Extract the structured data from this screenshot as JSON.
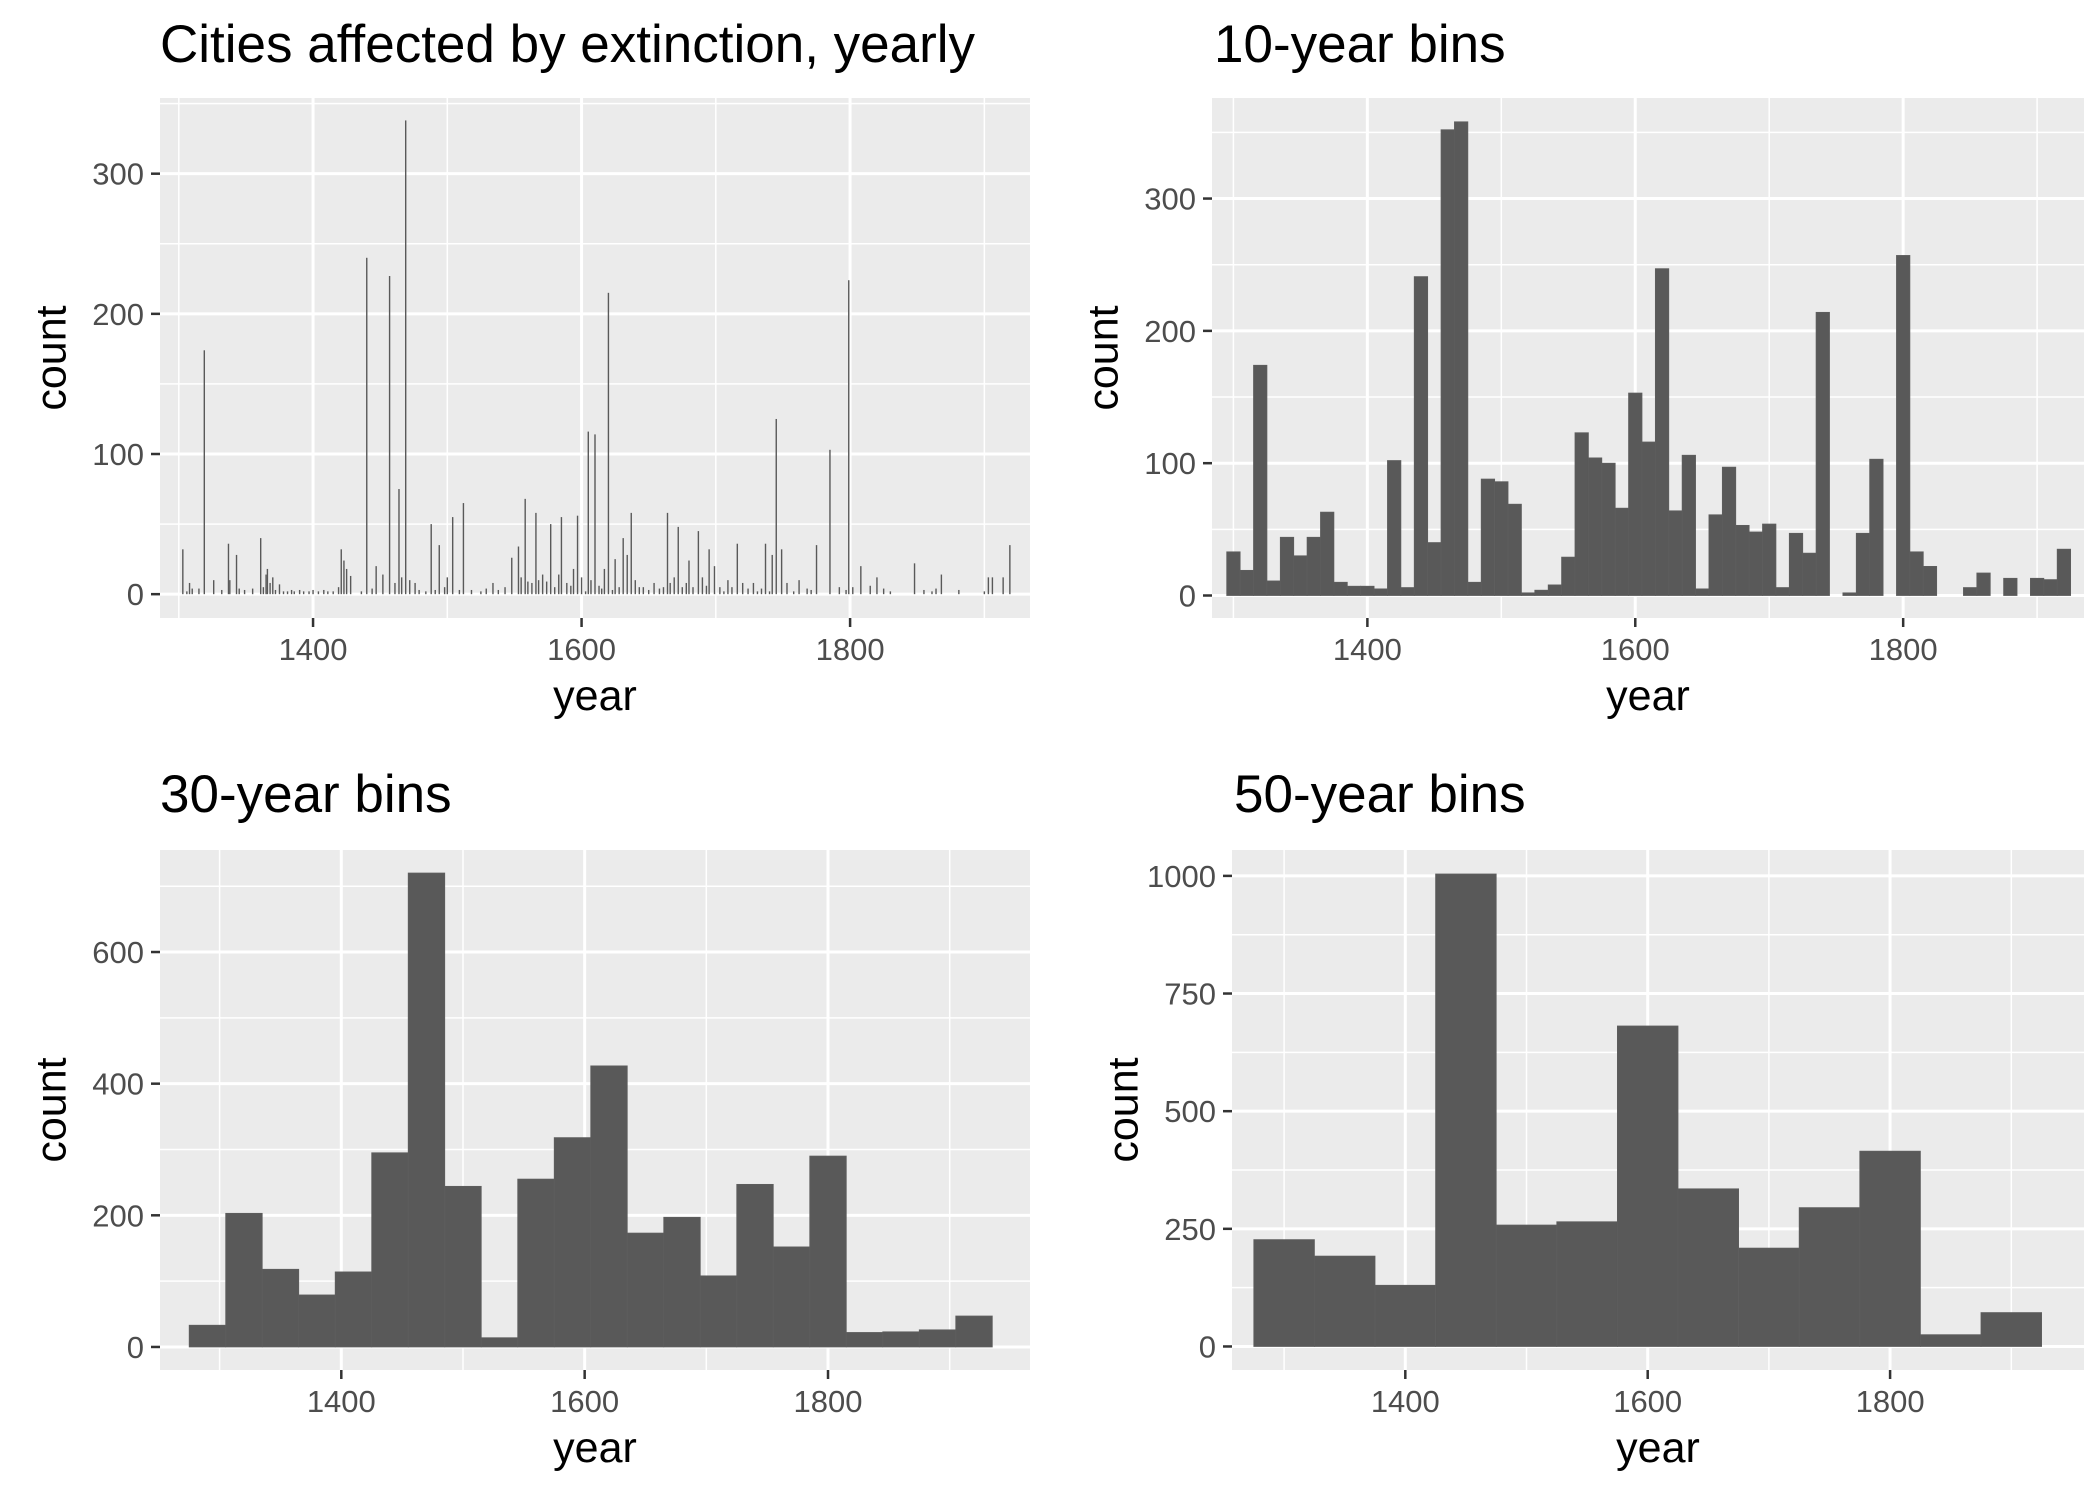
{
  "figure": {
    "background": "#ffffff",
    "panel_bg": "#ebebeb",
    "grid_color": "#ffffff",
    "bar_color": "#595959",
    "tick_text_color": "#4d4d4d"
  },
  "chart_data": [
    {
      "type": "bar",
      "title": "Cities affected by extinction, yearly",
      "xlabel": "year",
      "ylabel": "count",
      "xlim": [
        1286,
        1934
      ],
      "ylim": [
        -17,
        354
      ],
      "x_ticks": [
        "1400",
        "1600",
        "1800"
      ],
      "x_tick_values": [
        1400,
        1600,
        1800
      ],
      "y_ticks": [
        "0",
        "100",
        "200",
        "300"
      ],
      "y_tick_values": [
        0,
        100,
        200,
        300
      ],
      "grid": true,
      "bin_width": 1,
      "x": [
        1303,
        1306,
        1308,
        1310,
        1315,
        1319,
        1326,
        1332,
        1337,
        1338,
        1343,
        1345,
        1349,
        1355,
        1361,
        1363,
        1365,
        1366,
        1368,
        1370,
        1372,
        1375,
        1378,
        1381,
        1384,
        1386,
        1390,
        1393,
        1397,
        1400,
        1404,
        1408,
        1411,
        1415,
        1419,
        1421,
        1423,
        1425,
        1428,
        1436,
        1440,
        1444,
        1447,
        1452,
        1457,
        1461,
        1464,
        1466,
        1469,
        1472,
        1476,
        1479,
        1484,
        1488,
        1491,
        1494,
        1498,
        1500,
        1504,
        1509,
        1512,
        1518,
        1525,
        1529,
        1534,
        1538,
        1543,
        1548,
        1553,
        1555,
        1558,
        1560,
        1563,
        1566,
        1568,
        1571,
        1574,
        1577,
        1580,
        1583,
        1585,
        1589,
        1592,
        1594,
        1597,
        1600,
        1603,
        1605,
        1607,
        1610,
        1613,
        1615,
        1617,
        1620,
        1623,
        1625,
        1628,
        1631,
        1634,
        1637,
        1640,
        1643,
        1646,
        1650,
        1654,
        1658,
        1661,
        1664,
        1666,
        1669,
        1672,
        1675,
        1678,
        1680,
        1683,
        1687,
        1690,
        1693,
        1695,
        1699,
        1703,
        1706,
        1709,
        1712,
        1716,
        1720,
        1724,
        1728,
        1731,
        1734,
        1737,
        1740,
        1742,
        1745,
        1749,
        1753,
        1758,
        1762,
        1768,
        1771,
        1775,
        1785,
        1792,
        1797,
        1799,
        1802,
        1808,
        1815,
        1820,
        1825,
        1830,
        1848,
        1855,
        1861,
        1864,
        1868,
        1881,
        1900,
        1903,
        1906,
        1914,
        1919
      ],
      "values": [
        32,
        2,
        8,
        4,
        4,
        174,
        10,
        3,
        36,
        10,
        28,
        4,
        3,
        4,
        40,
        5,
        14,
        18,
        8,
        12,
        3,
        7,
        2,
        2,
        3,
        2,
        3,
        2,
        2,
        3,
        2,
        3,
        2,
        2,
        5,
        32,
        24,
        18,
        13,
        2,
        240,
        4,
        20,
        14,
        227,
        8,
        75,
        12,
        338,
        10,
        8,
        3,
        2,
        50,
        3,
        35,
        5,
        12,
        55,
        3,
        65,
        3,
        2,
        4,
        8,
        3,
        5,
        26,
        34,
        12,
        68,
        9,
        8,
        58,
        10,
        14,
        9,
        50,
        5,
        14,
        55,
        8,
        6,
        18,
        56,
        12,
        2,
        116,
        10,
        114,
        6,
        4,
        18,
        215,
        3,
        25,
        5,
        40,
        28,
        58,
        10,
        5,
        5,
        3,
        8,
        4,
        5,
        58,
        8,
        12,
        48,
        5,
        8,
        24,
        5,
        45,
        12,
        6,
        32,
        20,
        5,
        2,
        10,
        5,
        36,
        8,
        4,
        8,
        2,
        4,
        36,
        2,
        28,
        125,
        32,
        8,
        2,
        10,
        4,
        3,
        35,
        103,
        5,
        3,
        224,
        5,
        20,
        6,
        12,
        4,
        2,
        22,
        3,
        2,
        4,
        14,
        3,
        2,
        12,
        12,
        12,
        35
      ]
    },
    {
      "type": "bar",
      "title": "10-year bins",
      "xlabel": "year",
      "ylabel": "count",
      "xlim": [
        1284,
        1935
      ],
      "ylim": [
        -17,
        376
      ],
      "x_ticks": [
        "1400",
        "1600",
        "1800"
      ],
      "x_tick_values": [
        1400,
        1600,
        1800
      ],
      "y_ticks": [
        "0",
        "100",
        "200",
        "300"
      ],
      "y_tick_values": [
        0,
        100,
        200,
        300
      ],
      "grid": true,
      "bin_width": 10,
      "x": [
        1300,
        1310,
        1320,
        1330,
        1340,
        1350,
        1360,
        1370,
        1380,
        1390,
        1400,
        1410,
        1420,
        1430,
        1440,
        1450,
        1460,
        1470,
        1480,
        1490,
        1500,
        1510,
        1520,
        1530,
        1540,
        1550,
        1560,
        1570,
        1580,
        1590,
        1600,
        1610,
        1620,
        1630,
        1640,
        1650,
        1660,
        1670,
        1680,
        1690,
        1700,
        1710,
        1720,
        1730,
        1740,
        1750,
        1760,
        1770,
        1780,
        1790,
        1800,
        1810,
        1820,
        1830,
        1840,
        1850,
        1860,
        1870,
        1880,
        1890,
        1900,
        1910,
        1920
      ],
      "values": [
        33,
        19,
        174,
        11,
        44,
        30,
        44,
        63,
        10,
        7,
        7,
        5,
        102,
        6,
        241,
        40,
        352,
        358,
        10,
        88,
        86,
        69,
        2,
        4,
        8,
        29,
        123,
        104,
        100,
        66,
        153,
        116,
        247,
        64,
        106,
        5,
        61,
        97,
        53,
        48,
        54,
        6,
        47,
        32,
        214,
        0,
        2,
        47,
        103,
        0,
        257,
        33,
        22,
        0,
        0,
        6,
        17,
        0,
        13,
        0,
        13,
        12,
        35
      ]
    },
    {
      "type": "bar",
      "title": "30-year bins",
      "xlabel": "year",
      "ylabel": "count",
      "xlim": [
        1251,
        1966
      ],
      "ylim": [
        -35,
        755
      ],
      "x_ticks": [
        "1400",
        "1600",
        "1800"
      ],
      "x_tick_values": [
        1400,
        1600,
        1800
      ],
      "y_ticks": [
        "0",
        "200",
        "400",
        "600"
      ],
      "y_tick_values": [
        0,
        200,
        400,
        600
      ],
      "grid": true,
      "bin_width": 30,
      "x": [
        1290,
        1320,
        1350,
        1380,
        1410,
        1440,
        1470,
        1500,
        1530,
        1560,
        1590,
        1620,
        1650,
        1680,
        1710,
        1740,
        1770,
        1800,
        1830,
        1860,
        1890,
        1920
      ],
      "values": [
        33,
        203,
        118,
        79,
        114,
        295,
        720,
        244,
        14,
        255,
        318,
        427,
        173,
        197,
        108,
        247,
        152,
        290,
        22,
        23,
        26,
        47
      ]
    },
    {
      "type": "bar",
      "title": "50-year bins",
      "xlabel": "year",
      "ylabel": "count",
      "xlim": [
        1257,
        1960
      ],
      "ylim": [
        -50,
        1055
      ],
      "x_ticks": [
        "1400",
        "1600",
        "1800"
      ],
      "x_tick_values": [
        1400,
        1600,
        1800
      ],
      "y_ticks": [
        "0",
        "250",
        "500",
        "750",
        "1000"
      ],
      "y_tick_values": [
        0,
        250,
        500,
        750,
        1000
      ],
      "grid": true,
      "bin_width": 50,
      "x": [
        1300,
        1350,
        1400,
        1450,
        1500,
        1550,
        1600,
        1650,
        1700,
        1750,
        1800,
        1850,
        1900
      ],
      "values": [
        227,
        192,
        130,
        1004,
        258,
        265,
        681,
        335,
        209,
        295,
        415,
        25,
        72
      ]
    }
  ]
}
